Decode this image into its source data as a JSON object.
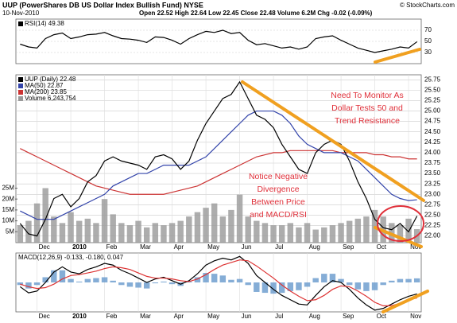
{
  "chart_data": [
    {
      "type": "line",
      "title": "UUP (PowerShares DB US Dollar Index Bullish Fund) NYSE",
      "subtitle": "10-Nov-2010",
      "quote": "Open 22.52 High 22.64 Low 22.45 Close 22.48 Volume 6.2M Chg -0.02 (-0.09%)",
      "source": "© StockCharts.com",
      "ylim": [
        10,
        90
      ],
      "yticks": [
        70,
        50,
        30
      ],
      "grid": true,
      "series": [
        {
          "name": "RSI(14) 49.38",
          "color": "#000000",
          "values": [
            45,
            40,
            38,
            55,
            62,
            65,
            55,
            58,
            62,
            63,
            66,
            60,
            55,
            54,
            52,
            48,
            58,
            57,
            52,
            45,
            55,
            62,
            68,
            66,
            70,
            64,
            66,
            52,
            44,
            46,
            42,
            38,
            40,
            36,
            40,
            55,
            58,
            60,
            52,
            45,
            38,
            34,
            30,
            33,
            36,
            40,
            38,
            49.38
          ]
        }
      ]
    },
    {
      "type": "line",
      "categories": [
        null,
        null,
        "Dec",
        null,
        null,
        null,
        "2010",
        null,
        null,
        null,
        "Feb",
        null,
        null,
        null,
        "Mar",
        null,
        null,
        null,
        "Apr",
        null,
        null,
        null,
        "May",
        null,
        null,
        null,
        "Jun",
        null,
        null,
        null,
        "Jul",
        null,
        null,
        null,
        "Aug",
        null,
        null,
        null,
        "Sep",
        null,
        null,
        null,
        "Oct",
        null,
        null,
        null,
        "Nov",
        null
      ],
      "ylim": [
        21.84,
        25.87
      ],
      "yticks": [
        {
          "value": 22,
          "label": "22.00"
        },
        22.25,
        {
          "value": 22.5,
          "label": "22.50"
        },
        22.75,
        {
          "value": 23,
          "label": "23.00"
        },
        23.25,
        {
          "value": 23.5,
          "label": "23.50"
        },
        23.75,
        {
          "value": 24,
          "label": "24.00"
        },
        24.25,
        {
          "value": 24.5,
          "label": "24.50"
        },
        24.75,
        {
          "value": 25,
          "label": "25.00"
        },
        25.25,
        {
          "value": 25.5,
          "label": "25.50"
        },
        25.75
      ],
      "y2lim": [
        0,
        77
      ],
      "y2ticks": [
        {
          "value": 5,
          "label": "5M"
        },
        {
          "value": 10,
          "label": "10M"
        },
        {
          "value": 15,
          "label": "15M"
        },
        {
          "value": 20,
          "label": "20M"
        },
        {
          "value": 25,
          "label": "25M"
        }
      ],
      "grid": true,
      "annotations": [
        [
          "Need To Monitor As",
          "Dollar Tests 50 and",
          "Trend Resistance"
        ],
        [
          "Notice Negative",
          "Divergence",
          "Between Price",
          "and MACD/RSI"
        ]
      ],
      "series": [
        {
          "name": "Volume 6,243,754",
          "color": "#999999",
          "type": "bar",
          "axis": "y2",
          "values": [
            8,
            10,
            18,
            25,
            12,
            9,
            14,
            10,
            11,
            9,
            20,
            13,
            9,
            8,
            10,
            7,
            9,
            8,
            9,
            10,
            12,
            14,
            16,
            18,
            12,
            15,
            22,
            12,
            10,
            9,
            8,
            8,
            9,
            7,
            9,
            6,
            7,
            8,
            9,
            10,
            11,
            12,
            15,
            12,
            9,
            8,
            11,
            6.2
          ]
        },
        {
          "name": "MA(200) 23.85",
          "color": "#cc3333",
          "type": "line",
          "values": [
            24.1,
            24.0,
            23.9,
            23.8,
            23.7,
            23.6,
            23.5,
            23.4,
            23.3,
            23.2,
            23.15,
            23.1,
            23.05,
            23.0,
            23.0,
            23.0,
            23.0,
            23.0,
            23.05,
            23.1,
            23.15,
            23.2,
            23.3,
            23.4,
            23.5,
            23.6,
            23.7,
            23.8,
            23.9,
            23.95,
            24.0,
            24.0,
            24.05,
            24.05,
            24.05,
            24.05,
            24.05,
            24.05,
            24.0,
            24.0,
            24.0,
            24.0,
            23.95,
            23.95,
            23.9,
            23.9,
            23.85,
            23.85
          ]
        },
        {
          "name": "MA(50) 22.87",
          "color": "#3344aa",
          "type": "line",
          "values": [
            22.6,
            22.5,
            22.4,
            22.4,
            22.4,
            22.5,
            22.6,
            22.7,
            22.8,
            22.9,
            23.0,
            23.2,
            23.3,
            23.4,
            23.5,
            23.5,
            23.6,
            23.7,
            23.7,
            23.7,
            23.7,
            23.8,
            23.9,
            24.1,
            24.3,
            24.5,
            24.7,
            24.9,
            25.0,
            25.0,
            25.0,
            24.9,
            24.7,
            24.4,
            24.2,
            24.1,
            24.0,
            24.0,
            24.0,
            23.9,
            23.8,
            23.6,
            23.4,
            23.2,
            23.0,
            22.9,
            22.85,
            22.87
          ]
        },
        {
          "name": "UUP (Daily) 22.48",
          "color": "#000000",
          "type": "line",
          "values": [
            22.3,
            22.05,
            22.0,
            22.4,
            22.9,
            23.0,
            22.7,
            22.9,
            23.3,
            23.45,
            23.8,
            23.9,
            23.8,
            23.75,
            23.7,
            23.6,
            23.9,
            23.95,
            23.85,
            23.6,
            23.8,
            24.3,
            24.7,
            25.0,
            25.3,
            25.4,
            25.7,
            25.3,
            24.9,
            24.8,
            24.6,
            24.2,
            23.9,
            23.6,
            23.5,
            24.0,
            24.2,
            24.3,
            24.2,
            23.8,
            23.3,
            22.9,
            22.4,
            22.2,
            22.15,
            22.3,
            22.1,
            22.48
          ]
        }
      ]
    },
    {
      "type": "line",
      "title": "MACD(12,26,9) -0.133, -0.180, 0.047",
      "categories": [
        null,
        null,
        "Dec",
        null,
        null,
        null,
        "2010",
        null,
        null,
        null,
        "Feb",
        null,
        null,
        null,
        "Mar",
        null,
        null,
        null,
        "Apr",
        null,
        null,
        null,
        "May",
        null,
        null,
        null,
        "Jun",
        null,
        null,
        null,
        "Jul",
        null,
        null,
        null,
        "Aug",
        null,
        null,
        null,
        "Sep",
        null,
        null,
        null,
        "Oct",
        null,
        null,
        null,
        "Nov",
        null
      ],
      "ylim": [
        -0.34,
        0.34
      ],
      "series": [
        {
          "color": "#6699cc",
          "type": "bar",
          "values": [
            -0.03,
            -0.07,
            -0.03,
            0.06,
            0.14,
            0.14,
            0.04,
            0.01,
            0.04,
            0.05,
            0.06,
            0.02,
            -0.03,
            -0.05,
            -0.06,
            -0.07,
            -0.01,
            0.01,
            -0.02,
            -0.04,
            0.01,
            0.06,
            0.11,
            0.1,
            0.08,
            0.03,
            0.04,
            -0.03,
            -0.11,
            -0.12,
            -0.13,
            -0.12,
            -0.1,
            -0.09,
            -0.05,
            0.05,
            0.1,
            0.1,
            0.04,
            -0.03,
            -0.08,
            -0.1,
            -0.09,
            -0.03,
            0.02,
            0.04,
            0.04,
            0.047
          ]
        },
        {
          "color": "#000000",
          "type": "line",
          "values": [
            -0.05,
            -0.12,
            -0.1,
            0.0,
            0.12,
            0.18,
            0.12,
            0.1,
            0.15,
            0.18,
            0.22,
            0.2,
            0.14,
            0.1,
            0.05,
            0.0,
            0.04,
            0.06,
            0.02,
            -0.02,
            0.02,
            0.1,
            0.2,
            0.25,
            0.28,
            0.26,
            0.3,
            0.22,
            0.08,
            0.0,
            -0.08,
            -0.15,
            -0.2,
            -0.25,
            -0.26,
            -0.15,
            -0.05,
            0.02,
            0.0,
            -0.08,
            -0.18,
            -0.26,
            -0.32,
            -0.3,
            -0.25,
            -0.2,
            -0.16,
            -0.133
          ]
        },
        {
          "color": "#dd3333",
          "type": "line",
          "values": [
            -0.02,
            -0.05,
            -0.07,
            -0.06,
            -0.02,
            0.04,
            0.08,
            0.09,
            0.11,
            0.13,
            0.16,
            0.18,
            0.17,
            0.15,
            0.11,
            0.07,
            0.05,
            0.05,
            0.04,
            0.02,
            0.01,
            0.04,
            0.09,
            0.15,
            0.2,
            0.23,
            0.26,
            0.25,
            0.19,
            0.12,
            0.05,
            -0.03,
            -0.1,
            -0.16,
            -0.21,
            -0.2,
            -0.15,
            -0.08,
            -0.04,
            -0.05,
            -0.1,
            -0.16,
            -0.23,
            -0.27,
            -0.27,
            -0.24,
            -0.2,
            -0.18
          ]
        }
      ]
    }
  ]
}
